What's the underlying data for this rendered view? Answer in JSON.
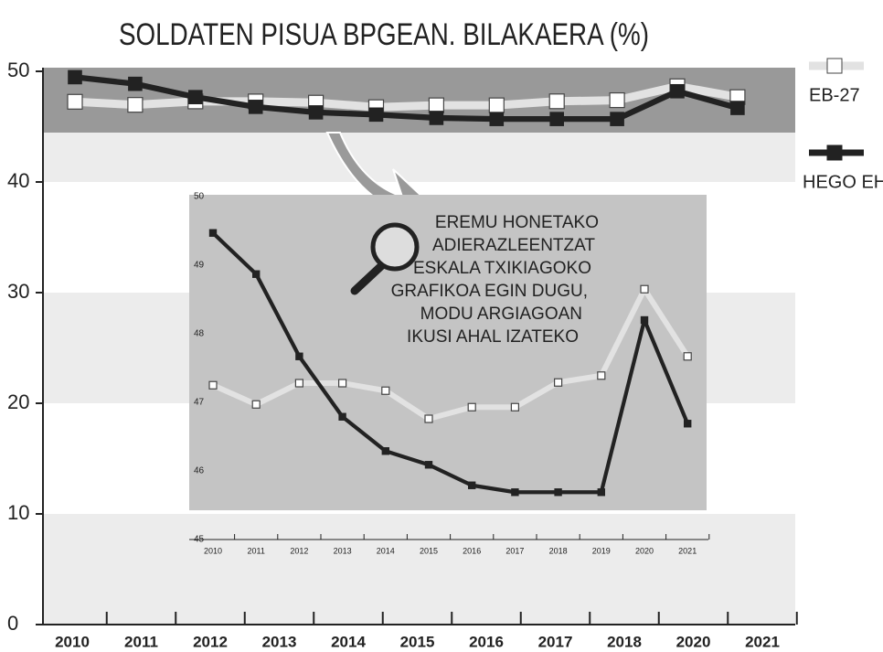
{
  "chart_data": [
    {
      "type": "line",
      "title": "SOLDATEN PISUA  BPGEAN. BILAKAERA (%)",
      "categories": [
        "2010",
        "2011",
        "2012",
        "2013",
        "2014",
        "2015",
        "2016",
        "2017",
        "2018",
        null,
        "2020",
        "2021"
      ],
      "ylim": [
        0,
        50
      ],
      "yticks": [
        0,
        10,
        20,
        30,
        40,
        50
      ],
      "series": [
        {
          "name": "EB-27",
          "color": "#e2e2e2",
          "values": [
            47.25,
            46.97,
            47.28,
            47.28,
            47.17,
            46.76,
            46.93,
            46.93,
            47.29,
            47.39,
            48.65,
            47.67
          ]
        },
        {
          "name": "HEGO EH",
          "color": "#222222",
          "values": [
            49.47,
            48.87,
            47.67,
            46.79,
            46.29,
            46.09,
            45.79,
            45.69,
            45.69,
            45.69,
            48.2,
            46.69
          ]
        }
      ]
    },
    {
      "type": "line",
      "categories": [
        "2010",
        "2011",
        "2012",
        "2013",
        "2014",
        "2015",
        "2016",
        "2017",
        "2018",
        "2019",
        "2020",
        "2021"
      ],
      "ylim": [
        45,
        50
      ],
      "yticks": [
        45,
        46,
        47,
        48,
        49,
        50
      ],
      "annotation": [
        "EREMU HONETAKO",
        "ADIERAZLEENTZAT",
        "ESKALA TXIKIAGOKO",
        "GRAFIKOA EGIN DUGU,",
        "MODU ARGIAGOAN",
        "IKUSI AHAL IZATEKO"
      ],
      "series": [
        {
          "name": "EB-27",
          "color": "#e2e2e2",
          "values": [
            47.25,
            46.97,
            47.28,
            47.28,
            47.17,
            46.76,
            46.93,
            46.93,
            47.29,
            47.39,
            48.65,
            47.67
          ]
        },
        {
          "name": "HEGO EH",
          "color": "#222222",
          "values": [
            49.47,
            48.87,
            47.67,
            46.79,
            46.29,
            46.09,
            45.79,
            45.69,
            45.69,
            45.69,
            48.2,
            46.69
          ]
        }
      ]
    }
  ]
}
